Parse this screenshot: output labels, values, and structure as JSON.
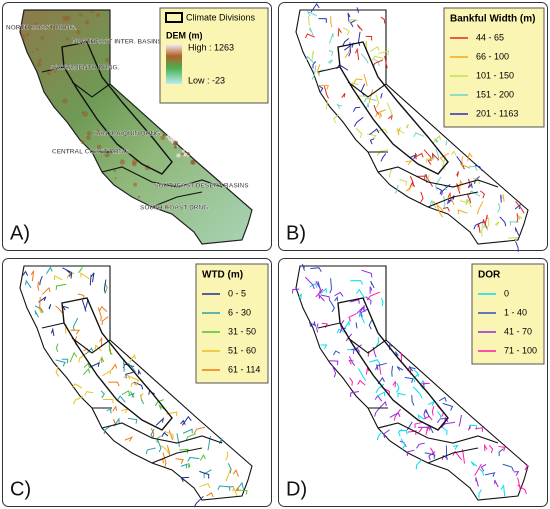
{
  "panels": [
    {
      "label": "A)",
      "legend": {
        "boundary": "Climate Divisions",
        "title": "DEM (m)",
        "high": "High : 1263",
        "low": "Low : -23"
      },
      "regions": [
        "NORTH COAST DRNG.",
        "NORTHEAST INTER. BASINS",
        "SACRAMENTO DRNG.",
        "SAN JOAQUIN DRNG.",
        "CENTRAL COAST DRNG.",
        "SOUTHEAST DESERT BASINS",
        "SOUTH COAST DRNG."
      ]
    },
    {
      "label": "B)",
      "legend": {
        "title": "Bankful Width (m)",
        "items": [
          {
            "label": "44 - 65",
            "color": "#e4261f"
          },
          {
            "label": "66 - 100",
            "color": "#f5a623"
          },
          {
            "label": "101 - 150",
            "color": "#c6e04a"
          },
          {
            "label": "151 - 200",
            "color": "#6fd3c6"
          },
          {
            "label": "201 - 1163",
            "color": "#2b2fb5"
          }
        ]
      }
    },
    {
      "label": "C)",
      "legend": {
        "title": "WTD (m)",
        "items": [
          {
            "label": "0 - 5",
            "color": "#1f2f8f"
          },
          {
            "label": "6 - 30",
            "color": "#2aa0a8"
          },
          {
            "label": "31 - 50",
            "color": "#4fc232"
          },
          {
            "label": "51 - 60",
            "color": "#e8c020"
          },
          {
            "label": "61 - 114",
            "color": "#ee7a10"
          }
        ]
      }
    },
    {
      "label": "D)",
      "legend": {
        "title": "DOR",
        "items": [
          {
            "label": "0",
            "color": "#00e0ee"
          },
          {
            "label": "1 - 40",
            "color": "#3050c0"
          },
          {
            "label": "41 - 70",
            "color": "#8a2be2"
          },
          {
            "label": "71 - 100",
            "color": "#ff1aa8"
          }
        ]
      }
    }
  ]
}
